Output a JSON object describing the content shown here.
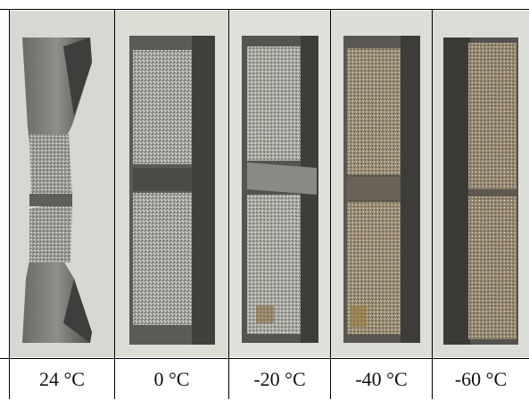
{
  "specimens": [
    {
      "temperature": "24 °C"
    },
    {
      "temperature": "0 °C"
    },
    {
      "temperature": "-20 °C"
    },
    {
      "temperature": "-40 °C"
    },
    {
      "temperature": "-60 °C"
    }
  ],
  "colors": {
    "background": "#ffffff",
    "grid_lines": "#000000",
    "steel_dark": "#4a4a48",
    "steel_mid": "#8a8a86",
    "fracture_grey": "#b8b8b2",
    "rust": "#8a6a3a"
  }
}
